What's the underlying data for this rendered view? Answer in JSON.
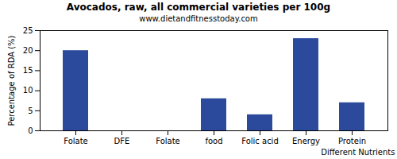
{
  "chart_data": {
    "type": "bar",
    "title": "Avocados, raw, all commercial varieties per 100g",
    "subtitle": "www.dietandfitnesstoday.com",
    "x_label": "Different Nutrients",
    "y_label": "Percentage of RDA (%)",
    "categories": [
      "Folate",
      "DFE",
      "Folate",
      "food",
      "Folic acid",
      "Energy",
      "Protein"
    ],
    "values": [
      20,
      0,
      0,
      8,
      4,
      23,
      7
    ],
    "color": "#2b4a9b",
    "ylim": [
      0,
      25
    ],
    "yticks": [
      0,
      5,
      10,
      15,
      20,
      25
    ],
    "grid": false
  }
}
